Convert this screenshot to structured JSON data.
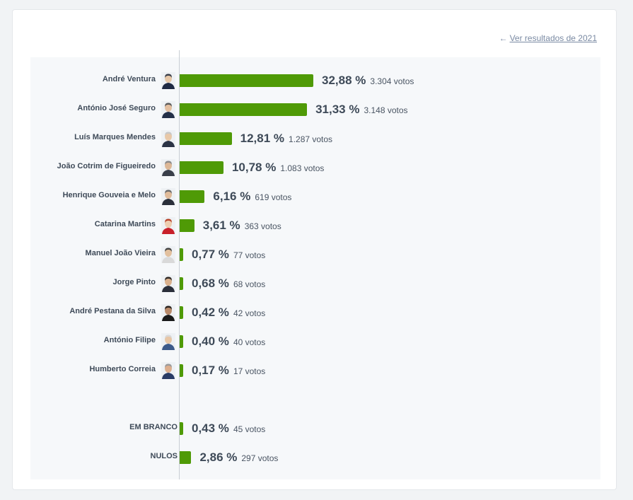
{
  "back_link": {
    "arrow": "←",
    "label": "Ver resultados de 2021"
  },
  "chart_data": {
    "type": "bar",
    "orientation": "horizontal",
    "categories": [
      "André Ventura",
      "António José Seguro",
      "Luís Marques Mendes",
      "João Cotrim de Figueiredo",
      "Henrique Gouveia e Melo",
      "Catarina Martins",
      "Manuel João Vieira",
      "Jorge Pinto",
      "André Pestana da Silva",
      "António Filipe",
      "Humberto Correia",
      "EM BRANCO",
      "NULOS"
    ],
    "values": [
      32.88,
      31.33,
      12.81,
      10.78,
      6.16,
      3.61,
      0.77,
      0.68,
      0.42,
      0.4,
      0.17,
      0.43,
      2.86
    ],
    "value_labels": [
      "32,88 %",
      "31,33 %",
      "12,81 %",
      "10,78 %",
      "6,16 %",
      "3,61 %",
      "0,77 %",
      "0,68 %",
      "0,42 %",
      "0,40 %",
      "0,17 %",
      "0,43 %",
      "2,86 %"
    ],
    "vote_labels": [
      "3.304 votos",
      "3.148 votos",
      "1.287 votos",
      "1.083 votos",
      "619 votos",
      "363 votos",
      "77 votos",
      "68 votos",
      "42 votos",
      "40 votos",
      "17 votos",
      "45 votos",
      "297 votos"
    ],
    "has_photo": [
      true,
      true,
      true,
      true,
      true,
      true,
      true,
      true,
      true,
      true,
      true,
      false,
      false
    ],
    "bar_color": "#4f9a06",
    "grid": false
  }
}
